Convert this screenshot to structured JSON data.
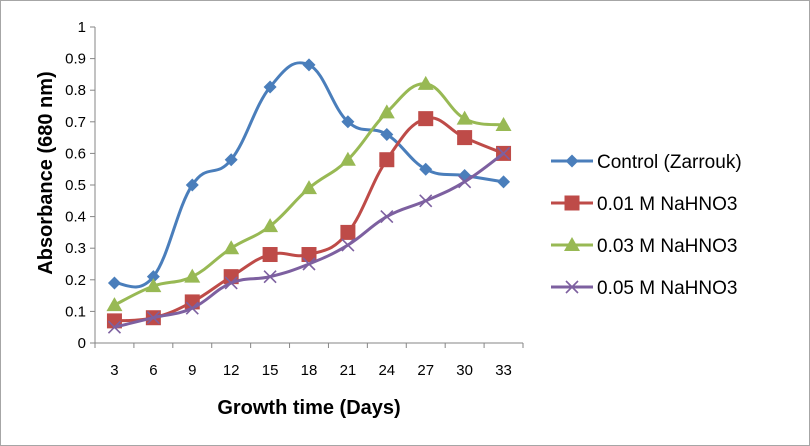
{
  "chart_data": {
    "type": "line",
    "xlabel": "Growth time (Days)",
    "ylabel": "Absorbance (680 nm)",
    "ylim": [
      0,
      1
    ],
    "yticks": [
      "0",
      "0.1",
      "0.2",
      "0.3",
      "0.4",
      "0.5",
      "0.6",
      "0.7",
      "0.8",
      "0.9",
      "1"
    ],
    "categories": [
      "3",
      "6",
      "9",
      "12",
      "15",
      "18",
      "21",
      "24",
      "27",
      "30",
      "33"
    ],
    "grid": false,
    "legend_position": "right",
    "series": [
      {
        "name": "Control (Zarrouk)",
        "color": "#4a7ebb",
        "marker": "diamond",
        "values": [
          0.19,
          0.21,
          0.5,
          0.58,
          0.81,
          0.88,
          0.7,
          0.66,
          0.55,
          0.53,
          0.51
        ]
      },
      {
        "name": "0.01 M NaHNO3",
        "color": "#be4b48",
        "marker": "square",
        "values": [
          0.07,
          0.08,
          0.13,
          0.21,
          0.28,
          0.28,
          0.35,
          0.58,
          0.71,
          0.65,
          0.6
        ]
      },
      {
        "name": "0.03 M NaHNO3",
        "color": "#98b954",
        "marker": "triangle",
        "values": [
          0.12,
          0.18,
          0.21,
          0.3,
          0.37,
          0.49,
          0.58,
          0.73,
          0.82,
          0.71,
          0.69
        ]
      },
      {
        "name": "0.05 M NaHNO3",
        "color": "#7d60a0",
        "marker": "x",
        "values": [
          0.05,
          0.08,
          0.11,
          0.19,
          0.21,
          0.25,
          0.31,
          0.4,
          0.45,
          0.51,
          0.6
        ]
      }
    ]
  }
}
